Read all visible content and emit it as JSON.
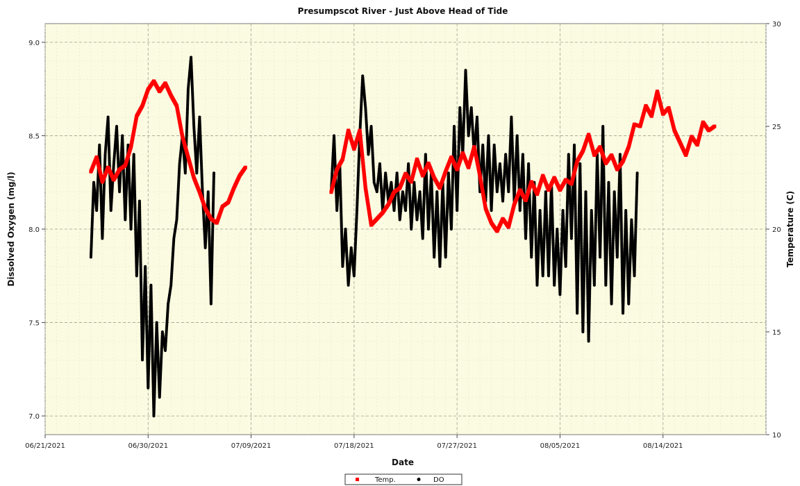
{
  "chart_data": {
    "type": "scatter",
    "title": "Presumpscot River - Just Above Head of Tide",
    "xlabel": "Date",
    "ylabel_left": "Dissolved Oxygen (mg/l)",
    "ylabel_right": "Temperature (C)",
    "xlim": [
      "2021-06-21",
      "2021-08-23"
    ],
    "ylim_left": [
      6.9,
      9.1
    ],
    "ylim_right": [
      10,
      30
    ],
    "x_ticks": [
      "06/21/2021",
      "06/30/2021",
      "07/09/2021",
      "07/18/2021",
      "07/27/2021",
      "08/05/2021",
      "08/14/2021"
    ],
    "y_ticks_left": [
      "7.0",
      "7.5",
      "8.0",
      "8.5",
      "9.0"
    ],
    "y_ticks_right": [
      "10",
      "15",
      "20",
      "25",
      "30"
    ],
    "grid": true,
    "legend_position": "bottom-center",
    "background_color": "#fbfbe2",
    "series": [
      {
        "name": "Temp.",
        "axis": "right",
        "color": "#ff0000",
        "marker": "square",
        "points": [
          [
            "2021-06-25",
            22.8
          ],
          [
            "2021-06-25T12",
            23.5
          ],
          [
            "2021-06-26",
            22.3
          ],
          [
            "2021-06-26T12",
            23.0
          ],
          [
            "2021-06-27",
            22.4
          ],
          [
            "2021-06-27T12",
            22.9
          ],
          [
            "2021-06-28",
            23.1
          ],
          [
            "2021-06-28T12",
            24.0
          ],
          [
            "2021-06-29",
            25.5
          ],
          [
            "2021-06-29T12",
            26.0
          ],
          [
            "2021-06-30",
            26.8
          ],
          [
            "2021-06-30T12",
            27.2
          ],
          [
            "2021-07-01",
            26.7
          ],
          [
            "2021-07-01T12",
            27.1
          ],
          [
            "2021-07-02",
            26.5
          ],
          [
            "2021-07-02T12",
            26.0
          ],
          [
            "2021-07-03",
            24.5
          ],
          [
            "2021-07-03T12",
            23.5
          ],
          [
            "2021-07-04",
            22.5
          ],
          [
            "2021-07-04T12",
            21.8
          ],
          [
            "2021-07-05",
            21.0
          ],
          [
            "2021-07-05T12",
            20.5
          ],
          [
            "2021-07-06",
            20.3
          ],
          [
            "2021-07-06T12",
            21.1
          ],
          [
            "2021-07-07",
            21.3
          ],
          [
            "2021-07-07T12",
            22.0
          ],
          [
            "2021-07-08",
            22.6
          ],
          [
            "2021-07-08T12",
            23.0
          ],
          [
            "2021-07-16",
            21.8
          ],
          [
            "2021-07-16T12",
            22.9
          ],
          [
            "2021-07-17",
            23.4
          ],
          [
            "2021-07-17T12",
            24.8
          ],
          [
            "2021-07-18",
            23.9
          ],
          [
            "2021-07-18T12",
            24.8
          ],
          [
            "2021-07-19",
            22.0
          ],
          [
            "2021-07-19T12",
            20.2
          ],
          [
            "2021-07-20",
            20.5
          ],
          [
            "2021-07-20T12",
            20.8
          ],
          [
            "2021-07-21",
            21.2
          ],
          [
            "2021-07-21T12",
            21.8
          ],
          [
            "2021-07-22",
            22.0
          ],
          [
            "2021-07-22T12",
            22.7
          ],
          [
            "2021-07-23",
            22.3
          ],
          [
            "2021-07-23T12",
            23.4
          ],
          [
            "2021-07-24",
            22.6
          ],
          [
            "2021-07-24T12",
            23.2
          ],
          [
            "2021-07-25",
            22.5
          ],
          [
            "2021-07-25T12",
            22.0
          ],
          [
            "2021-07-26",
            22.8
          ],
          [
            "2021-07-26T12",
            23.5
          ],
          [
            "2021-07-27",
            22.9
          ],
          [
            "2021-07-27T12",
            23.7
          ],
          [
            "2021-07-28",
            23.0
          ],
          [
            "2021-07-28T12",
            24.0
          ],
          [
            "2021-07-29",
            22.6
          ],
          [
            "2021-07-29T12",
            21.0
          ],
          [
            "2021-07-30",
            20.3
          ],
          [
            "2021-07-30T12",
            19.9
          ],
          [
            "2021-07-31",
            20.5
          ],
          [
            "2021-07-31T12",
            20.1
          ],
          [
            "2021-08-01",
            21.2
          ],
          [
            "2021-08-01T12",
            21.9
          ],
          [
            "2021-08-02",
            21.4
          ],
          [
            "2021-08-02T12",
            22.3
          ],
          [
            "2021-08-03",
            21.7
          ],
          [
            "2021-08-03T12",
            22.6
          ],
          [
            "2021-08-04",
            21.9
          ],
          [
            "2021-08-04T12",
            22.5
          ],
          [
            "2021-08-05",
            21.9
          ],
          [
            "2021-08-05T12",
            22.4
          ],
          [
            "2021-08-06",
            22.2
          ],
          [
            "2021-08-06T12",
            23.3
          ],
          [
            "2021-08-07",
            23.8
          ],
          [
            "2021-08-07T12",
            24.6
          ],
          [
            "2021-08-08",
            23.6
          ],
          [
            "2021-08-08T12",
            24.0
          ],
          [
            "2021-08-09",
            23.2
          ],
          [
            "2021-08-09T12",
            23.6
          ],
          [
            "2021-08-10",
            22.9
          ],
          [
            "2021-08-10T12",
            23.3
          ],
          [
            "2021-08-11",
            24.0
          ],
          [
            "2021-08-11T12",
            25.1
          ],
          [
            "2021-08-12",
            25.0
          ],
          [
            "2021-08-12T12",
            26.0
          ],
          [
            "2021-08-13",
            25.5
          ],
          [
            "2021-08-13T12",
            26.7
          ],
          [
            "2021-08-14",
            25.6
          ],
          [
            "2021-08-14T12",
            25.9
          ],
          [
            "2021-08-15",
            24.8
          ],
          [
            "2021-08-15T12",
            24.2
          ],
          [
            "2021-08-16",
            23.6
          ],
          [
            "2021-08-16T12",
            24.5
          ],
          [
            "2021-08-17",
            24.1
          ],
          [
            "2021-08-17T12",
            25.2
          ],
          [
            "2021-08-18",
            24.8
          ],
          [
            "2021-08-18T12",
            25.0
          ]
        ]
      },
      {
        "name": "DO",
        "axis": "left",
        "color": "#000000",
        "marker": "circle",
        "points": [
          [
            "2021-06-25",
            7.85
          ],
          [
            "2021-06-25T06",
            8.25
          ],
          [
            "2021-06-25T12",
            8.1
          ],
          [
            "2021-06-25T18",
            8.45
          ],
          [
            "2021-06-26",
            7.95
          ],
          [
            "2021-06-26T06",
            8.4
          ],
          [
            "2021-06-26T12",
            8.6
          ],
          [
            "2021-06-26T18",
            8.1
          ],
          [
            "2021-06-27",
            8.35
          ],
          [
            "2021-06-27T06",
            8.55
          ],
          [
            "2021-06-27T12",
            8.2
          ],
          [
            "2021-06-27T18",
            8.5
          ],
          [
            "2021-06-28",
            8.05
          ],
          [
            "2021-06-28T06",
            8.45
          ],
          [
            "2021-06-28T12",
            8.0
          ],
          [
            "2021-06-28T18",
            8.4
          ],
          [
            "2021-06-29",
            7.75
          ],
          [
            "2021-06-29T06",
            8.15
          ],
          [
            "2021-06-29T12",
            7.3
          ],
          [
            "2021-06-29T18",
            7.8
          ],
          [
            "2021-06-30",
            7.15
          ],
          [
            "2021-06-30T06",
            7.7
          ],
          [
            "2021-06-30T12",
            7.0
          ],
          [
            "2021-06-30T18",
            7.5
          ],
          [
            "2021-07-01",
            7.1
          ],
          [
            "2021-07-01T06",
            7.45
          ],
          [
            "2021-07-01T12",
            7.35
          ],
          [
            "2021-07-01T18",
            7.6
          ],
          [
            "2021-07-02",
            7.7
          ],
          [
            "2021-07-02T06",
            7.95
          ],
          [
            "2021-07-02T12",
            8.05
          ],
          [
            "2021-07-02T18",
            8.35
          ],
          [
            "2021-07-03",
            8.5
          ],
          [
            "2021-07-03T06",
            8.3
          ],
          [
            "2021-07-03T12",
            8.75
          ],
          [
            "2021-07-03T18",
            8.92
          ],
          [
            "2021-07-04",
            8.55
          ],
          [
            "2021-07-04T06",
            8.3
          ],
          [
            "2021-07-04T12",
            8.6
          ],
          [
            "2021-07-04T18",
            8.2
          ],
          [
            "2021-07-05",
            7.9
          ],
          [
            "2021-07-05T06",
            8.2
          ],
          [
            "2021-07-05T12",
            7.6
          ],
          [
            "2021-07-05T18",
            8.3
          ],
          [
            "2021-07-16",
            8.2
          ],
          [
            "2021-07-16T06",
            8.5
          ],
          [
            "2021-07-16T12",
            8.1
          ],
          [
            "2021-07-16T18",
            8.35
          ],
          [
            "2021-07-17",
            7.8
          ],
          [
            "2021-07-17T06",
            8.0
          ],
          [
            "2021-07-17T12",
            7.7
          ],
          [
            "2021-07-17T18",
            7.9
          ],
          [
            "2021-07-18",
            7.75
          ],
          [
            "2021-07-18T06",
            8.1
          ],
          [
            "2021-07-18T12",
            8.5
          ],
          [
            "2021-07-18T18",
            8.82
          ],
          [
            "2021-07-19",
            8.65
          ],
          [
            "2021-07-19T06",
            8.4
          ],
          [
            "2021-07-19T12",
            8.55
          ],
          [
            "2021-07-19T18",
            8.25
          ],
          [
            "2021-07-20",
            8.2
          ],
          [
            "2021-07-20T06",
            8.35
          ],
          [
            "2021-07-20T12",
            8.1
          ],
          [
            "2021-07-20T18",
            8.3
          ],
          [
            "2021-07-21",
            8.15
          ],
          [
            "2021-07-21T06",
            8.25
          ],
          [
            "2021-07-21T12",
            8.1
          ],
          [
            "2021-07-21T18",
            8.3
          ],
          [
            "2021-07-22",
            8.05
          ],
          [
            "2021-07-22T06",
            8.2
          ],
          [
            "2021-07-22T12",
            8.1
          ],
          [
            "2021-07-22T18",
            8.35
          ],
          [
            "2021-07-23",
            8.0
          ],
          [
            "2021-07-23T06",
            8.25
          ],
          [
            "2021-07-23T12",
            8.05
          ],
          [
            "2021-07-23T18",
            8.2
          ],
          [
            "2021-07-24",
            7.95
          ],
          [
            "2021-07-24T06",
            8.4
          ],
          [
            "2021-07-24T12",
            8.0
          ],
          [
            "2021-07-24T18",
            8.3
          ],
          [
            "2021-07-25",
            7.85
          ],
          [
            "2021-07-25T06",
            8.2
          ],
          [
            "2021-07-25T12",
            7.8
          ],
          [
            "2021-07-25T18",
            8.25
          ],
          [
            "2021-07-26",
            7.85
          ],
          [
            "2021-07-26T06",
            8.3
          ],
          [
            "2021-07-26T12",
            8.0
          ],
          [
            "2021-07-26T18",
            8.55
          ],
          [
            "2021-07-27",
            8.1
          ],
          [
            "2021-07-27T06",
            8.65
          ],
          [
            "2021-07-27T12",
            8.4
          ],
          [
            "2021-07-27T18",
            8.85
          ],
          [
            "2021-07-28",
            8.5
          ],
          [
            "2021-07-28T06",
            8.65
          ],
          [
            "2021-07-28T12",
            8.4
          ],
          [
            "2021-07-28T18",
            8.6
          ],
          [
            "2021-07-29",
            8.2
          ],
          [
            "2021-07-29T06",
            8.45
          ],
          [
            "2021-07-29T12",
            8.15
          ],
          [
            "2021-07-29T18",
            8.5
          ],
          [
            "2021-07-30",
            8.1
          ],
          [
            "2021-07-30T06",
            8.45
          ],
          [
            "2021-07-30T12",
            8.2
          ],
          [
            "2021-07-30T18",
            8.35
          ],
          [
            "2021-07-31",
            8.15
          ],
          [
            "2021-07-31T06",
            8.4
          ],
          [
            "2021-07-31T12",
            8.2
          ],
          [
            "2021-07-31T18",
            8.6
          ],
          [
            "2021-08-01",
            8.15
          ],
          [
            "2021-08-01T06",
            8.5
          ],
          [
            "2021-08-01T12",
            8.1
          ],
          [
            "2021-08-01T18",
            8.4
          ],
          [
            "2021-08-02",
            7.95
          ],
          [
            "2021-08-02T06",
            8.35
          ],
          [
            "2021-08-02T12",
            7.85
          ],
          [
            "2021-08-02T18",
            8.25
          ],
          [
            "2021-08-03",
            7.7
          ],
          [
            "2021-08-03T06",
            8.1
          ],
          [
            "2021-08-03T12",
            7.75
          ],
          [
            "2021-08-03T18",
            8.2
          ],
          [
            "2021-08-04",
            7.75
          ],
          [
            "2021-08-04T06",
            8.25
          ],
          [
            "2021-08-04T12",
            7.7
          ],
          [
            "2021-08-04T18",
            8.0
          ],
          [
            "2021-08-05",
            7.65
          ],
          [
            "2021-08-05T06",
            8.1
          ],
          [
            "2021-08-05T12",
            7.8
          ],
          [
            "2021-08-05T18",
            8.4
          ],
          [
            "2021-08-06",
            7.95
          ],
          [
            "2021-08-06T06",
            8.45
          ],
          [
            "2021-08-06T12",
            7.55
          ],
          [
            "2021-08-06T18",
            8.35
          ],
          [
            "2021-08-07",
            7.45
          ],
          [
            "2021-08-07T06",
            8.2
          ],
          [
            "2021-08-07T12",
            7.4
          ],
          [
            "2021-08-07T18",
            8.1
          ],
          [
            "2021-08-08",
            7.7
          ],
          [
            "2021-08-08T06",
            8.4
          ],
          [
            "2021-08-08T12",
            7.85
          ],
          [
            "2021-08-08T18",
            8.55
          ],
          [
            "2021-08-09",
            7.7
          ],
          [
            "2021-08-09T06",
            8.25
          ],
          [
            "2021-08-09T12",
            7.6
          ],
          [
            "2021-08-09T18",
            8.2
          ],
          [
            "2021-08-10",
            7.85
          ],
          [
            "2021-08-10T06",
            8.4
          ],
          [
            "2021-08-10T12",
            7.55
          ],
          [
            "2021-08-10T18",
            8.1
          ],
          [
            "2021-08-11",
            7.6
          ],
          [
            "2021-08-11T06",
            8.05
          ],
          [
            "2021-08-11T12",
            7.75
          ],
          [
            "2021-08-11T18",
            8.3
          ]
        ]
      }
    ]
  },
  "legend": {
    "items": [
      {
        "label": "Temp.",
        "color": "#ff0000",
        "marker": "square"
      },
      {
        "label": "DO",
        "color": "#000000",
        "marker": "circle"
      }
    ]
  }
}
